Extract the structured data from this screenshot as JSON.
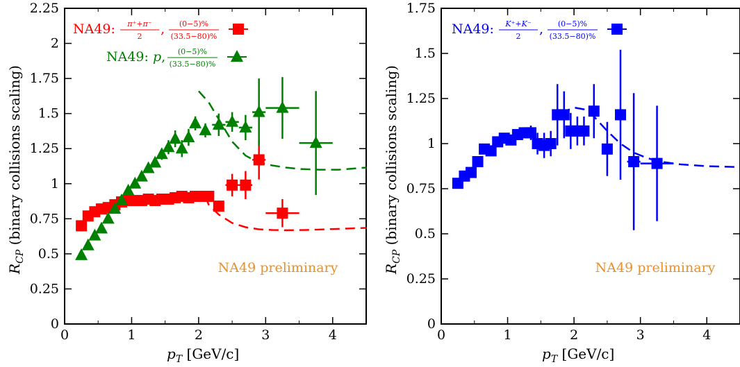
{
  "chart_data": [
    {
      "type": "scatter",
      "xlabel": "p_T [GeV/c]",
      "ylabel": "R_CP (binary collisions scaling)",
      "xlim": [
        0,
        4.5
      ],
      "ylim": [
        0,
        2.25
      ],
      "xticks": [
        "0",
        "1",
        "2",
        "3",
        "4"
      ],
      "yticks": [
        "0",
        "0.25",
        "0.5",
        "0.75",
        "1",
        "1.25",
        "1.5",
        "1.75",
        "2",
        "2.25"
      ],
      "annotation": "NA49 preliminary",
      "legend_position": "top-left",
      "series": [
        {
          "name": "NA49: (π⁺+π⁻)/2, (0−5)%/(33.5−80)%",
          "legend_prefix": "NA49:",
          "legend_num": "π⁺+π⁻",
          "legend_den": "2",
          "legend_cnum": "(0−5)%",
          "legend_cden": "(33.5−80)%",
          "marker": "square",
          "color": "#ff0000",
          "x": [
            0.25,
            0.35,
            0.45,
            0.55,
            0.65,
            0.75,
            0.85,
            0.95,
            1.05,
            1.15,
            1.25,
            1.35,
            1.45,
            1.55,
            1.65,
            1.75,
            1.85,
            1.95,
            2.05,
            2.15,
            2.3,
            2.5,
            2.7,
            2.9,
            3.25
          ],
          "y": [
            0.7,
            0.77,
            0.8,
            0.82,
            0.83,
            0.85,
            0.87,
            0.88,
            0.88,
            0.88,
            0.89,
            0.88,
            0.89,
            0.89,
            0.9,
            0.91,
            0.9,
            0.91,
            0.91,
            0.91,
            0.84,
            0.99,
            0.99,
            1.17,
            0.79
          ],
          "yerr": [
            0.02,
            0.02,
            0.02,
            0.02,
            0.02,
            0.02,
            0.02,
            0.02,
            0.02,
            0.02,
            0.02,
            0.02,
            0.02,
            0.02,
            0.02,
            0.02,
            0.02,
            0.02,
            0.02,
            0.02,
            0.04,
            0.08,
            0.1,
            0.14,
            0.1
          ],
          "xerr": [
            0,
            0,
            0,
            0,
            0,
            0,
            0,
            0,
            0,
            0,
            0,
            0,
            0,
            0,
            0,
            0,
            0,
            0,
            0,
            0,
            0,
            0.1,
            0.1,
            0.1,
            0.25
          ]
        },
        {
          "name": "NA49: p, (0−5)%/(33.5−80)%",
          "legend_prefix": "NA49: p,",
          "legend_cnum": "(0−5)%",
          "legend_cden": "(33.5−80)%",
          "marker": "triangle",
          "color": "#008000",
          "x": [
            0.25,
            0.35,
            0.45,
            0.55,
            0.65,
            0.75,
            0.85,
            0.95,
            1.05,
            1.15,
            1.25,
            1.35,
            1.45,
            1.55,
            1.65,
            1.75,
            1.85,
            1.95,
            2.1,
            2.3,
            2.5,
            2.7,
            2.9,
            3.25,
            3.75
          ],
          "y": [
            0.49,
            0.56,
            0.63,
            0.68,
            0.75,
            0.82,
            0.88,
            0.95,
            1.0,
            1.05,
            1.11,
            1.15,
            1.21,
            1.26,
            1.32,
            1.25,
            1.33,
            1.43,
            1.38,
            1.42,
            1.44,
            1.4,
            1.51,
            1.54,
            1.29
          ],
          "yerr": [
            0.02,
            0.02,
            0.02,
            0.02,
            0.02,
            0.02,
            0.02,
            0.02,
            0.02,
            0.02,
            0.02,
            0.03,
            0.04,
            0.05,
            0.06,
            0.06,
            0.06,
            0.05,
            0.05,
            0.08,
            0.07,
            0.09,
            0.24,
            0.22,
            0.37
          ],
          "xerr": [
            0,
            0,
            0,
            0,
            0,
            0,
            0,
            0,
            0,
            0,
            0,
            0,
            0,
            0,
            0,
            0,
            0,
            0,
            0.05,
            0.1,
            0.1,
            0.1,
            0.1,
            0.25,
            0.25
          ]
        }
      ],
      "curves": [
        {
          "color": "#ff0000",
          "x": [
            2.1,
            2.15,
            2.3,
            2.5,
            2.7,
            2.9,
            3.1,
            3.3,
            3.6,
            3.9,
            4.2,
            4.5
          ],
          "y": [
            0.91,
            0.85,
            0.78,
            0.72,
            0.69,
            0.675,
            0.67,
            0.668,
            0.67,
            0.675,
            0.68,
            0.685
          ]
        },
        {
          "color": "#008000",
          "x": [
            2.0,
            2.15,
            2.3,
            2.5,
            2.7,
            2.9,
            3.1,
            3.3,
            3.5,
            3.8,
            4.1,
            4.5
          ],
          "y": [
            1.66,
            1.58,
            1.46,
            1.3,
            1.2,
            1.15,
            1.13,
            1.115,
            1.105,
            1.1,
            1.1,
            1.115
          ]
        }
      ]
    },
    {
      "type": "scatter",
      "xlabel": "p_T [GeV/c]",
      "ylabel": "R_CP (binary collisions scaling)",
      "xlim": [
        0,
        4.5
      ],
      "ylim": [
        0,
        1.75
      ],
      "xticks": [
        "0",
        "1",
        "2",
        "3",
        "4"
      ],
      "yticks": [
        "0",
        "0.25",
        "0.5",
        "0.75",
        "1",
        "1.25",
        "1.5",
        "1.75"
      ],
      "annotation": "NA49 preliminary",
      "legend_position": "top-left",
      "series": [
        {
          "name": "NA49: (K⁺+K⁻)/2, (0−5)%/(33.5−80)%",
          "legend_prefix": "NA49:",
          "legend_num": "K⁺+K⁻",
          "legend_den": "2",
          "legend_cnum": "(0−5)%",
          "legend_cden": "(33.5−80)%",
          "marker": "square",
          "color": "#0000ff",
          "x": [
            0.25,
            0.35,
            0.45,
            0.55,
            0.65,
            0.75,
            0.85,
            0.95,
            1.05,
            1.15,
            1.25,
            1.35,
            1.45,
            1.55,
            1.65,
            1.75,
            1.85,
            1.95,
            2.05,
            2.15,
            2.3,
            2.5,
            2.7,
            2.9,
            3.25
          ],
          "y": [
            0.78,
            0.82,
            0.84,
            0.9,
            0.97,
            0.96,
            1.01,
            1.03,
            1.02,
            1.05,
            1.06,
            1.06,
            1.0,
            0.99,
            1.0,
            1.16,
            1.16,
            1.07,
            1.07,
            1.07,
            1.18,
            0.97,
            1.16,
            0.9,
            0.89
          ],
          "yerr": [
            0.02,
            0.02,
            0.02,
            0.02,
            0.02,
            0.02,
            0.02,
            0.02,
            0.02,
            0.03,
            0.03,
            0.04,
            0.06,
            0.07,
            0.07,
            0.17,
            0.13,
            0.1,
            0.08,
            0.08,
            0.15,
            0.15,
            0.36,
            0.38,
            0.32
          ],
          "xerr": [
            0,
            0,
            0,
            0,
            0,
            0,
            0,
            0,
            0,
            0,
            0,
            0,
            0,
            0,
            0,
            0,
            0,
            0,
            0.05,
            0.05,
            0,
            0,
            0,
            0.1,
            0.25
          ]
        }
      ],
      "curves": [
        {
          "color": "#0000ff",
          "x": [
            1.8,
            2.0,
            2.15,
            2.3,
            2.5,
            2.7,
            2.9,
            3.1,
            3.3,
            3.6,
            4.0,
            4.5
          ],
          "y": [
            1.17,
            1.2,
            1.19,
            1.15,
            1.07,
            1.0,
            0.95,
            0.92,
            0.9,
            0.885,
            0.875,
            0.87
          ]
        }
      ]
    }
  ]
}
